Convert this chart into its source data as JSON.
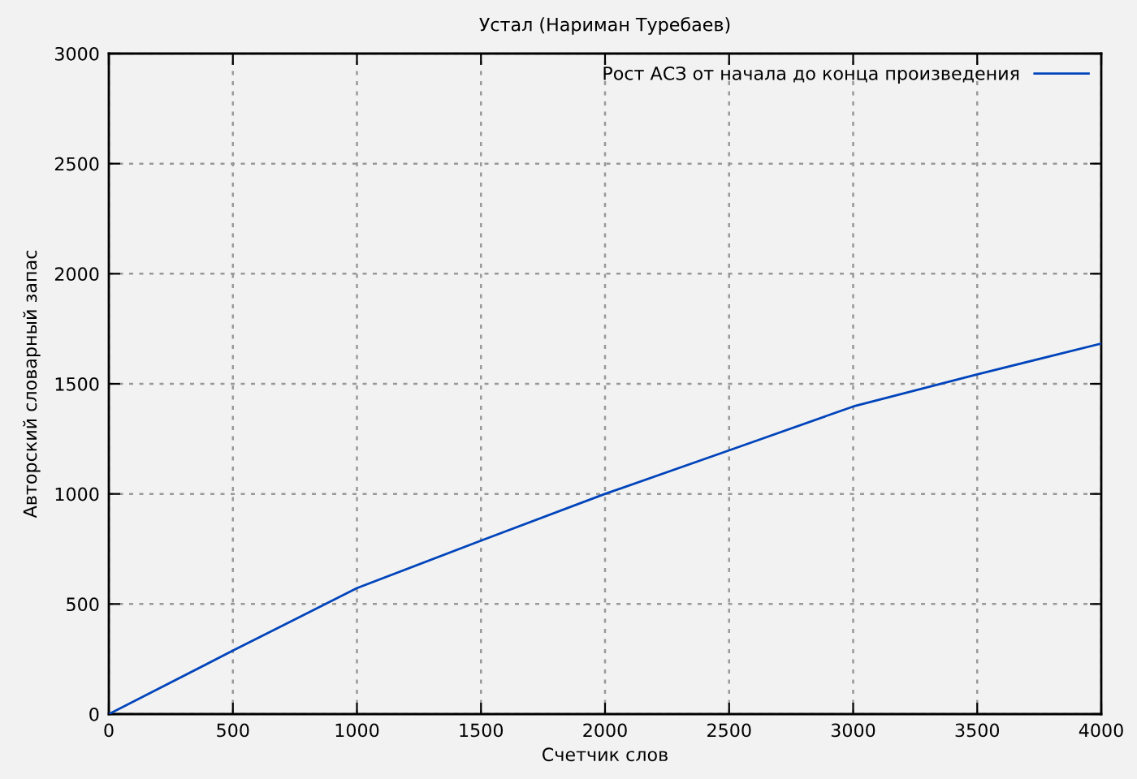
{
  "chart_data": {
    "type": "line",
    "title": "Устал (Нариман Туребаев)",
    "xlabel": "Счетчик слов",
    "ylabel": "Авторский словарный запас",
    "x": [
      0,
      500,
      1000,
      1500,
      2000,
      2500,
      3000,
      3500,
      4000
    ],
    "series": [
      {
        "name": "Рост АСЗ от начала до конца произведения",
        "color": "#0044bb",
        "values": [
          0,
          288,
          572,
          788,
          1000,
          1198,
          1397,
          1543,
          1683
        ]
      }
    ],
    "xlim": [
      0,
      4000
    ],
    "xticks": [
      0,
      500,
      1000,
      1500,
      2000,
      2500,
      3000,
      3500,
      4000
    ],
    "ylim": [
      0,
      3000
    ],
    "yticks": [
      0,
      500,
      1000,
      1500,
      2000,
      2500,
      3000
    ],
    "grid": true,
    "legend": "top right",
    "marker": "none",
    "line_style": "solid"
  }
}
